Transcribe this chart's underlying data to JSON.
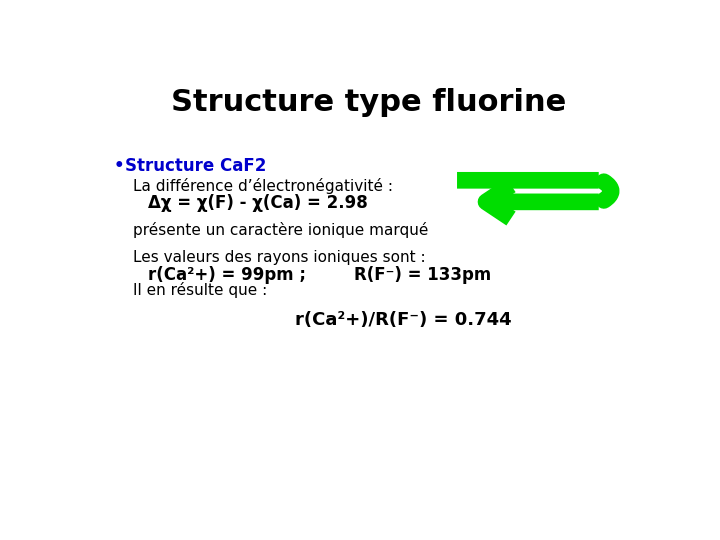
{
  "title": "Structure type fluorine",
  "title_fontsize": 22,
  "title_color": "#000000",
  "title_weight": "bold",
  "bullet_text": "Structure CaF2",
  "bullet_color": "#0000CC",
  "bullet_fontsize": 12,
  "bullet_weight": "bold",
  "line1": "La différence d’électronégativité :",
  "line2": "Δχ = χ(F) - χ(Ca) = 2.98",
  "line3": "présente un caractère ionique marqué",
  "line4": "Les valeurs des rayons ioniques sont :",
  "line5a": "r(Ca²+) = 99pm ;",
  "line5b": "R(F⁻) = 133pm",
  "line6": "Il en résulte que :",
  "line7": "r(Ca²+)/R(F⁻) = 0.744",
  "body_fontsize": 11,
  "body_weight": "normal",
  "bold_fontsize": 12,
  "bold_weight": "bold",
  "large_bold_fontsize": 13,
  "background_color": "#ffffff",
  "text_color": "#000000",
  "arrow_color": "#00DD00"
}
